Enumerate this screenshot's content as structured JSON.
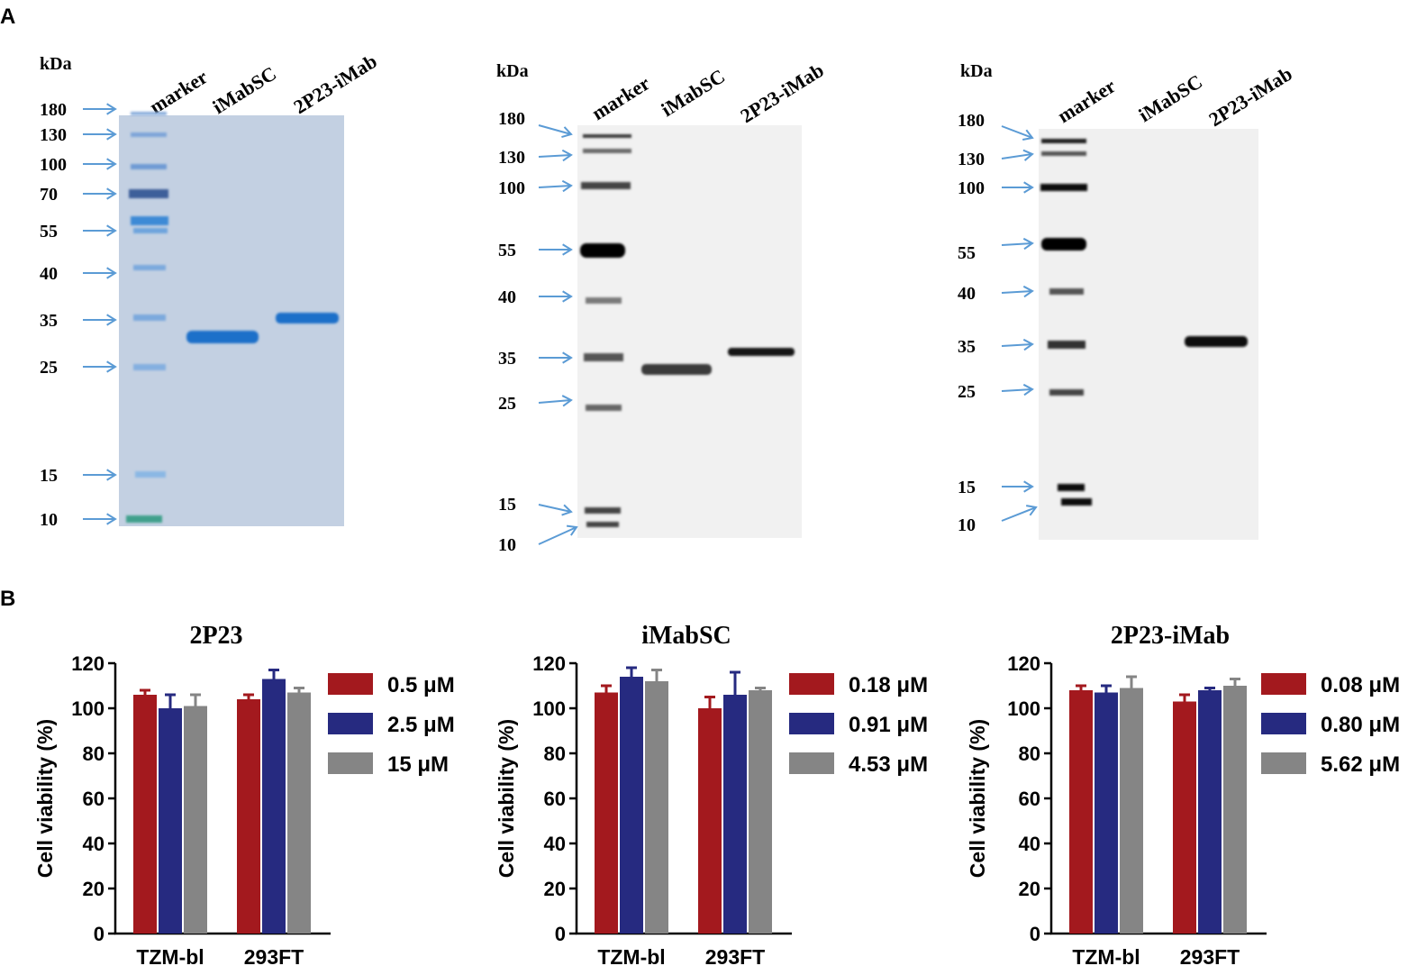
{
  "panel_labels": [
    "A",
    "B"
  ],
  "gels": [
    {
      "kda_label": "kDa",
      "lane_labels": [
        "marker",
        "iMabSC",
        "2P23-iMab"
      ],
      "markers": [
        "180",
        "130",
        "100",
        "70",
        "55",
        "40",
        "35",
        "25",
        "15",
        "10"
      ],
      "style": "coomassie"
    },
    {
      "kda_label": "kDa",
      "lane_labels": [
        "marker",
        "iMabSC",
        "2P23-iMab"
      ],
      "markers": [
        "180",
        "130",
        "100",
        "55",
        "40",
        "35",
        "25",
        "15",
        "10"
      ],
      "style": "blot"
    },
    {
      "kda_label": "kDa",
      "lane_labels": [
        "marker",
        "iMabSC",
        "2P23-iMab"
      ],
      "markers": [
        "180",
        "130",
        "100",
        "55",
        "40",
        "35",
        "25",
        "15",
        "10"
      ],
      "style": "blot"
    }
  ],
  "colors": {
    "red": "#a3191e",
    "navy": "#262a80",
    "gray": "#858585",
    "arrow": "#5b9bd5",
    "coomassie_bg": "#c3d0e2",
    "coomassie_band": "#1b6fc9"
  },
  "chart_data": [
    {
      "type": "bar",
      "title": "2P23",
      "ylabel": "Cell viability (%)",
      "ylim": [
        0,
        120
      ],
      "yticks": [
        "0",
        "20",
        "40",
        "60",
        "80",
        "100",
        "120"
      ],
      "categories": [
        "TZM-bl",
        "293FT"
      ],
      "series": [
        {
          "name": "0.5 μM",
          "values": [
            106,
            104
          ],
          "errors": [
            2,
            2
          ]
        },
        {
          "name": "2.5 μM",
          "values": [
            100,
            113
          ],
          "errors": [
            6,
            4
          ]
        },
        {
          "name": "15 μM",
          "values": [
            101,
            107
          ],
          "errors": [
            5,
            2
          ]
        }
      ],
      "legend": "right"
    },
    {
      "type": "bar",
      "title": "iMabSC",
      "ylabel": "Cell viability (%)",
      "ylim": [
        0,
        120
      ],
      "yticks": [
        "0",
        "20",
        "40",
        "60",
        "80",
        "100",
        "120"
      ],
      "categories": [
        "TZM-bl",
        "293FT"
      ],
      "series": [
        {
          "name": "0.18 μM",
          "values": [
            107,
            100
          ],
          "errors": [
            3,
            5
          ]
        },
        {
          "name": "0.91 μM",
          "values": [
            114,
            106
          ],
          "errors": [
            4,
            10
          ]
        },
        {
          "name": "4.53 μM",
          "values": [
            112,
            108
          ],
          "errors": [
            5,
            1
          ]
        }
      ],
      "legend": "right"
    },
    {
      "type": "bar",
      "title": "2P23-iMab",
      "ylabel": "Cell viability (%)",
      "ylim": [
        0,
        120
      ],
      "yticks": [
        "0",
        "20",
        "40",
        "60",
        "80",
        "100",
        "120"
      ],
      "categories": [
        "TZM-bl",
        "293FT"
      ],
      "series": [
        {
          "name": "0.08 μM",
          "values": [
            108,
            103
          ],
          "errors": [
            2,
            3
          ]
        },
        {
          "name": "0.80 μM",
          "values": [
            107,
            108
          ],
          "errors": [
            3,
            1
          ]
        },
        {
          "name": "5.62 μM",
          "values": [
            109,
            110
          ],
          "errors": [
            5,
            3
          ]
        }
      ],
      "legend": "right"
    }
  ]
}
